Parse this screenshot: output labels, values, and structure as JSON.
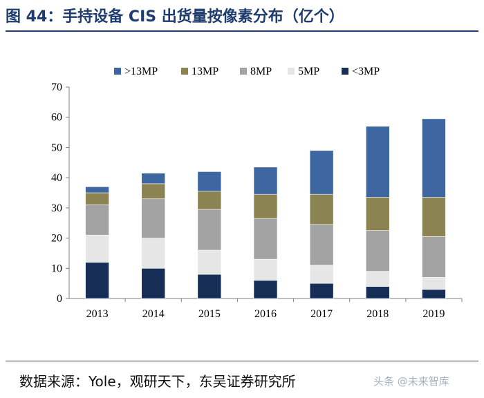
{
  "title": "图 44：手持设备 CIS 出货量按像素分布（亿个）",
  "source": "数据来源：Yole，观研天下，东吴证券研究所",
  "watermark": "头条 @未来智库",
  "colors": {
    "title": "#1f3c6e",
    ">13MP": "#3e67a2",
    "13MP": "#8c8352",
    "8MP": "#a3a3a3",
    "5MP": "#e6e6e6",
    "<3MP": "#172f57"
  },
  "chart_data": {
    "type": "bar",
    "stacked": true,
    "categories": [
      "2013",
      "2014",
      "2015",
      "2016",
      "2017",
      "2018",
      "2019"
    ],
    "series": [
      {
        "name": "<3MP",
        "values": [
          12,
          10,
          8,
          6,
          5,
          4,
          3
        ]
      },
      {
        "name": "5MP",
        "values": [
          9,
          10,
          8,
          7,
          6,
          5,
          4
        ]
      },
      {
        "name": "8MP",
        "values": [
          10,
          13,
          13.5,
          13.5,
          13.5,
          13.5,
          13.5
        ]
      },
      {
        "name": "13MP",
        "values": [
          4,
          5,
          6,
          8,
          10,
          11,
          13
        ]
      },
      {
        "name": ">13MP",
        "values": [
          2,
          3.5,
          6.5,
          9,
          14.5,
          23.5,
          26
        ]
      }
    ],
    "legend_order": [
      ">13MP",
      "13MP",
      "8MP",
      "5MP",
      "<3MP"
    ],
    "ylim": [
      0,
      70
    ],
    "yticks": [
      0,
      10,
      20,
      30,
      40,
      50,
      60,
      70
    ],
    "xlabel": "",
    "ylabel": "",
    "grid": false,
    "legend_position": "top"
  }
}
